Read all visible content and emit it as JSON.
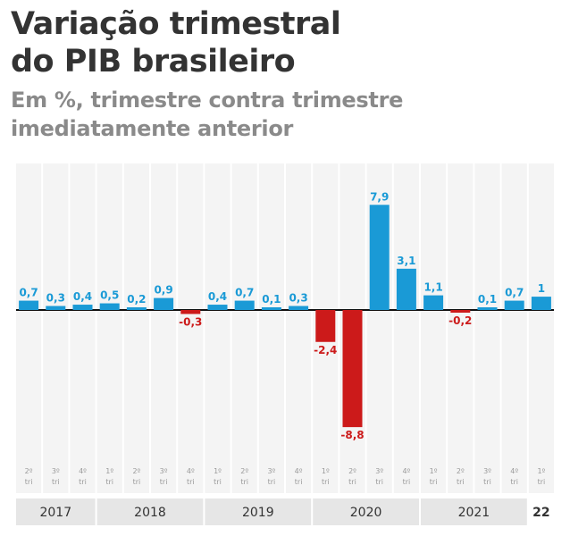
{
  "title_line1": "Variação trimestral",
  "title_line2": "do PIB brasileiro",
  "subtitle_line1": "Em %, trimestre contra trimestre",
  "subtitle_line2": "imediatamente anterior",
  "colors": {
    "positive": "#1a9ad6",
    "negative": "#cc1a1a",
    "column_bg": "#f4f4f4",
    "year_band": "#e6e6e6"
  },
  "chart_data": {
    "type": "bar",
    "title": "Variação trimestral do PIB brasileiro",
    "subtitle": "Em %, trimestre contra trimestre imediatamente anterior",
    "categories": [
      "2º tri 2017",
      "3º tri 2017",
      "4º tri 2017",
      "1º tri 2018",
      "2º tri 2018",
      "3º tri 2018",
      "4º tri 2018",
      "1º tri 2019",
      "2º tri 2019",
      "3º tri 2019",
      "4º tri 2019",
      "1º tri 2020",
      "2º tri 2020",
      "3º tri 2020",
      "4º tri 2020",
      "1º tri 2021",
      "2º tri 2021",
      "3º tri 2021",
      "4º tri 2021",
      "1º tri 2022"
    ],
    "values": [
      0.7,
      0.3,
      0.4,
      0.5,
      0.2,
      0.9,
      -0.3,
      0.4,
      0.7,
      0.1,
      0.3,
      -2.4,
      -8.8,
      7.9,
      3.1,
      1.1,
      -0.2,
      0.1,
      0.7,
      1.0
    ],
    "value_labels": [
      "0,7",
      "0,3",
      "0,4",
      "0,5",
      "0,2",
      "0,9",
      "-0,3",
      "0,4",
      "0,7",
      "0,1",
      "0,3",
      "-2,4",
      "-8,8",
      "7,9",
      "3,1",
      "1,1",
      "-0,2",
      "0,1",
      "0,7",
      "1"
    ],
    "quarter_labels": [
      "2º",
      "3º",
      "4º",
      "1º",
      "2º",
      "3º",
      "4º",
      "1º",
      "2º",
      "3º",
      "4º",
      "1º",
      "2º",
      "3º",
      "4º",
      "1º",
      "2º",
      "3º",
      "4º",
      "1º"
    ],
    "quarter_suffix": "tri",
    "years": [
      {
        "label": "2017",
        "count": 3
      },
      {
        "label": "2018",
        "count": 4
      },
      {
        "label": "2019",
        "count": 4
      },
      {
        "label": "2020",
        "count": 4
      },
      {
        "label": "2021",
        "count": 4
      },
      {
        "label": "22",
        "count": 1
      }
    ],
    "ylim": [
      -8.8,
      7.9
    ],
    "grid": false,
    "legend": "none"
  }
}
